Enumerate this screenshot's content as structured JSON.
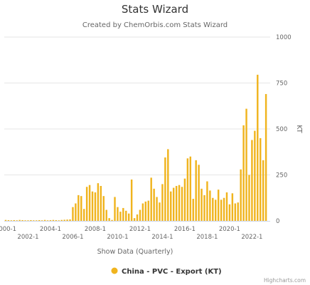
{
  "chart_data": {
    "type": "bar",
    "title": "Stats Wizard",
    "subtitle": "Created by ChemOrbis.com Stats Wizard",
    "xlabel": "Show Data (Quarterly)",
    "ylabel": "KT",
    "ylim": [
      0,
      1000
    ],
    "yticks": [
      0,
      250,
      500,
      750,
      1000
    ],
    "y_axis_position": "right",
    "grid": true,
    "legend_position": "bottom-center",
    "x_tick_labels_row1": [
      "2000-1",
      "2004-1",
      "2008-1",
      "2012-1",
      "2016-1",
      "2020-1"
    ],
    "x_tick_labels_row2": [
      "2002-1",
      "2006-1",
      "2010-1",
      "2014-1",
      "2018-1",
      "2022-1"
    ],
    "bar_color": "#f0b41e",
    "categories": [
      "2000-1",
      "2000-2",
      "2000-3",
      "2000-4",
      "2001-1",
      "2001-2",
      "2001-3",
      "2001-4",
      "2002-1",
      "2002-2",
      "2002-3",
      "2002-4",
      "2003-1",
      "2003-2",
      "2003-3",
      "2003-4",
      "2004-1",
      "2004-2",
      "2004-3",
      "2004-4",
      "2005-1",
      "2005-2",
      "2005-3",
      "2005-4",
      "2006-1",
      "2006-2",
      "2006-3",
      "2006-4",
      "2007-1",
      "2007-2",
      "2007-3",
      "2007-4",
      "2008-1",
      "2008-2",
      "2008-3",
      "2008-4",
      "2009-1",
      "2009-2",
      "2009-3",
      "2009-4",
      "2010-1",
      "2010-2",
      "2010-3",
      "2010-4",
      "2011-1",
      "2011-2",
      "2011-3",
      "2011-4",
      "2012-1",
      "2012-2",
      "2012-3",
      "2012-4",
      "2013-1",
      "2013-2",
      "2013-3",
      "2013-4",
      "2014-1",
      "2014-2",
      "2014-3",
      "2014-4",
      "2015-1",
      "2015-2",
      "2015-3",
      "2015-4",
      "2016-1",
      "2016-2",
      "2016-3",
      "2016-4",
      "2017-1",
      "2017-2",
      "2017-3",
      "2017-4",
      "2018-1",
      "2018-2",
      "2018-3",
      "2018-4",
      "2019-1",
      "2019-2",
      "2019-3",
      "2019-4",
      "2020-1",
      "2020-2",
      "2020-3",
      "2020-4",
      "2021-1",
      "2021-2",
      "2021-3",
      "2021-4",
      "2022-1",
      "2022-2",
      "2022-3",
      "2022-4",
      "2023-1",
      "2023-2",
      "2023-3"
    ],
    "series": [
      {
        "name": "China - PVC - Export (KT)",
        "values": [
          5,
          4,
          3,
          4,
          3,
          5,
          4,
          3,
          3,
          4,
          3,
          3,
          4,
          3,
          5,
          3,
          4,
          5,
          4,
          3,
          5,
          6,
          7,
          8,
          75,
          95,
          140,
          135,
          65,
          185,
          195,
          160,
          155,
          205,
          190,
          135,
          60,
          15,
          5,
          130,
          75,
          50,
          70,
          55,
          40,
          225,
          15,
          35,
          60,
          95,
          105,
          110,
          235,
          175,
          130,
          100,
          200,
          345,
          390,
          160,
          180,
          190,
          195,
          185,
          230,
          340,
          350,
          120,
          330,
          305,
          175,
          140,
          215,
          165,
          125,
          115,
          170,
          115,
          125,
          155,
          90,
          150,
          95,
          100,
          280,
          520,
          610,
          250,
          440,
          490,
          795,
          450,
          330,
          690,
          0
        ]
      }
    ]
  },
  "credits": "Highcharts.com"
}
